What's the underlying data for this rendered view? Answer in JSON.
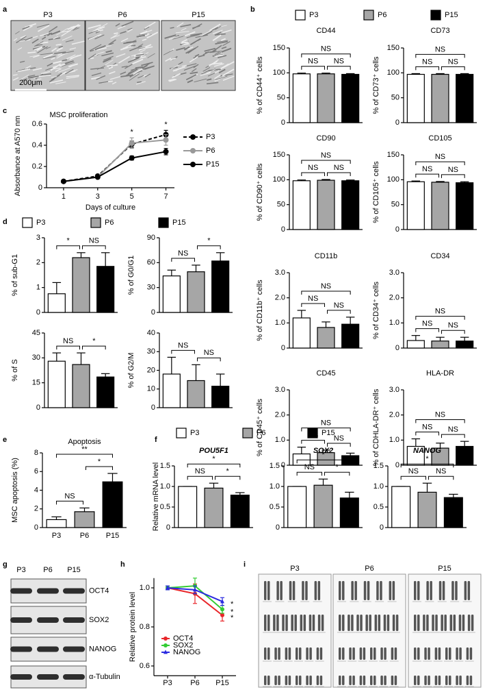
{
  "figure": {
    "panel_labels": [
      "a",
      "b",
      "c",
      "d",
      "e",
      "f",
      "g",
      "h",
      "i"
    ],
    "legend": {
      "labels": [
        "P3",
        "P6",
        "P15"
      ],
      "colors": [
        "#ffffff",
        "#a6a6a6",
        "#000000"
      ]
    }
  },
  "images": {
    "micrographs": {
      "labels": [
        "P3",
        "P6",
        "P15"
      ],
      "scale_bar": "200μm"
    },
    "western_blot": {
      "lanes": [
        "P3",
        "P6",
        "P15"
      ],
      "proteins": [
        "OCT4",
        "SOX2",
        "NANOG",
        "α-Tubulin"
      ]
    },
    "karyotypes": {
      "labels": [
        "P3",
        "P6",
        "P15"
      ]
    }
  },
  "chart_data": [
    {
      "type": "bar",
      "title": "CD44",
      "y_label": "% of CD44⁺ cells",
      "values": [
        98,
        98,
        97
      ],
      "errors": [
        1.5,
        1.5,
        1.5
      ],
      "ylim": [
        0,
        150
      ],
      "yticks": [
        0,
        50,
        100,
        150
      ],
      "comparisons": {
        "first": "NS",
        "second": "NS",
        "overall": "NS"
      }
    },
    {
      "type": "bar",
      "title": "CD73",
      "y_label": "% of CD73⁺ cells",
      "values": [
        97,
        97,
        97
      ],
      "errors": [
        1.5,
        1.5,
        1.5
      ],
      "ylim": [
        0,
        150
      ],
      "yticks": [
        0,
        50,
        100,
        150
      ],
      "comparisons": {
        "first": "NS",
        "second": "NS",
        "overall": "NS"
      }
    },
    {
      "type": "bar",
      "title": "CD90",
      "y_label": "% of CD90⁺ cells",
      "values": [
        98,
        99,
        98
      ],
      "errors": [
        1.5,
        1.5,
        1.5
      ],
      "ylim": [
        0,
        150
      ],
      "yticks": [
        0,
        50,
        100,
        150
      ],
      "comparisons": {
        "first": "NS",
        "second": "NS",
        "overall": "NS"
      }
    },
    {
      "type": "bar",
      "title": "CD105",
      "y_label": "% of CD105⁺ cells",
      "values": [
        96,
        95,
        94
      ],
      "errors": [
        1.5,
        1.5,
        2
      ],
      "ylim": [
        0,
        150
      ],
      "yticks": [
        0,
        50,
        100,
        150
      ],
      "comparisons": {
        "first": "NS",
        "second": "NS",
        "overall": "NS"
      }
    },
    {
      "type": "bar",
      "title": "CD11b",
      "y_label": "% of CD11b⁺ cells",
      "values": [
        1.2,
        0.82,
        0.95
      ],
      "errors": [
        0.3,
        0.22,
        0.28
      ],
      "ylim": [
        0,
        3
      ],
      "yticks": [
        0,
        {
          "value": 1,
          "label": "1.0"
        },
        {
          "value": 2,
          "label": "2.0"
        },
        {
          "value": 3,
          "label": "3.0"
        }
      ],
      "comparisons": {
        "first": "NS",
        "second": "NS",
        "overall": "NS"
      }
    },
    {
      "type": "bar",
      "title": "CD34",
      "y_label": "% of CD34⁺ cells",
      "values": [
        0.3,
        0.28,
        0.28
      ],
      "errors": [
        0.2,
        0.15,
        0.15
      ],
      "ylim": [
        0,
        3
      ],
      "yticks": [
        0,
        {
          "value": 1,
          "label": "1.0"
        },
        {
          "value": 2,
          "label": "2.0"
        },
        {
          "value": 3,
          "label": "3.0"
        }
      ],
      "comparisons": {
        "first": "NS",
        "second": "NS",
        "overall": "NS"
      }
    },
    {
      "type": "bar",
      "title": "CD45",
      "y_label": "% of CD45⁺ cells",
      "values": [
        0.45,
        0.5,
        0.38
      ],
      "errors": [
        0.27,
        0.1,
        0.1
      ],
      "ylim": [
        0,
        3
      ],
      "yticks": [
        0,
        {
          "value": 1,
          "label": "1.0"
        },
        {
          "value": 2,
          "label": "2.0"
        },
        {
          "value": 3,
          "label": "3.0"
        }
      ],
      "comparisons": {
        "first": "NS",
        "second": "NS",
        "overall": "NS"
      }
    },
    {
      "type": "bar",
      "title": "HLA-DR",
      "y_label": "% of CDHLA-DR⁺ cells",
      "values": [
        0.75,
        0.68,
        0.75
      ],
      "errors": [
        0.3,
        0.2,
        0.2
      ],
      "ylim": [
        0,
        3
      ],
      "yticks": [
        0,
        {
          "value": 1,
          "label": "1.0"
        },
        {
          "value": 2,
          "label": "2.0"
        },
        {
          "value": 3,
          "label": "3.0"
        }
      ],
      "comparisons": {
        "first": "NS",
        "second": "NS",
        "overall": "NS"
      }
    },
    {
      "type": "line",
      "title": "MSC proliferation",
      "x_label": "Days of culture",
      "y_label": "Absorbance at A570 nm",
      "x": [
        1,
        3,
        5,
        7
      ],
      "xlim": [
        0,
        7.5
      ],
      "xticks": [
        1,
        3,
        5,
        7
      ],
      "ylim": [
        0,
        0.6
      ],
      "yticks": [
        0,
        0.2,
        0.4,
        0.6
      ],
      "series": [
        {
          "name": "P3",
          "color": "#000000",
          "line_style": "dashed",
          "marker": "circle",
          "values": [
            0.06,
            0.11,
            0.41,
            0.5
          ],
          "errors": [
            0.005,
            0.01,
            0.03,
            0.04
          ]
        },
        {
          "name": "P6",
          "color": "#999999",
          "line_style": "solid",
          "marker": "circle",
          "values": [
            0.06,
            0.1,
            0.42,
            0.45
          ],
          "errors": [
            0.005,
            0.01,
            0.05,
            0.05
          ]
        },
        {
          "name": "P15",
          "color": "#000000",
          "line_style": "solid",
          "marker": "circle",
          "values": [
            0.06,
            0.1,
            0.28,
            0.34
          ],
          "errors": [
            0.005,
            0.01,
            0.02,
            0.03
          ]
        }
      ],
      "annotations": [
        {
          "x": 5,
          "text": "*"
        },
        {
          "x": 7,
          "text": "*"
        }
      ]
    },
    {
      "type": "bar",
      "y_label": "% of sub-G1",
      "values": [
        0.75,
        2.2,
        1.85
      ],
      "errors": [
        0.45,
        0.2,
        0.55
      ],
      "ylim": [
        0,
        3
      ],
      "yticks": [
        0,
        1,
        2,
        3
      ],
      "comparisons": {
        "first": "*",
        "second": "NS"
      }
    },
    {
      "type": "bar",
      "y_label": "% of G0/G1",
      "values": [
        44,
        49,
        62
      ],
      "errors": [
        7,
        8,
        10
      ],
      "ylim": [
        0,
        90
      ],
      "yticks": [
        0,
        30,
        60,
        90
      ],
      "comparisons": {
        "first": "NS",
        "second": "*"
      }
    },
    {
      "type": "bar",
      "y_label": "% of S",
      "values": [
        28,
        26,
        18.5
      ],
      "errors": [
        5,
        7,
        2
      ],
      "ylim": [
        0,
        45
      ],
      "yticks": [
        0,
        15,
        30,
        45
      ],
      "comparisons": {
        "first": "NS",
        "second": "*"
      }
    },
    {
      "type": "bar",
      "y_label": "% of G2/M",
      "values": [
        18,
        14.5,
        11.5
      ],
      "errors": [
        9,
        8.5,
        6.5
      ],
      "ylim": [
        0,
        40
      ],
      "yticks": [
        0,
        10,
        20,
        30,
        40
      ],
      "comparisons": {
        "first": "NS",
        "second": "NS"
      }
    },
    {
      "type": "bar",
      "title": "Apoptosis",
      "y_label": "MSC apoptosis (%)",
      "categories": [
        "P3",
        "P6",
        "P15"
      ],
      "values": [
        0.85,
        1.7,
        4.9
      ],
      "errors": [
        0.3,
        0.4,
        0.9
      ],
      "ylim": [
        0,
        8
      ],
      "yticks": [
        0,
        2,
        4,
        6,
        8
      ],
      "comparisons": {
        "first": "NS",
        "second": "*",
        "overall": "**"
      }
    },
    {
      "type": "bar",
      "title": "POU5F1",
      "y_label": "Relative mRNA level",
      "values": [
        1,
        0.96,
        0.79
      ],
      "errors": [
        0,
        0.12,
        0.06
      ],
      "ylim": [
        0,
        1.5
      ],
      "yticks": [
        0,
        0.5,
        {
          "value": 1,
          "label": "1.0"
        },
        1.5
      ],
      "comparisons": {
        "first": "NS",
        "second": "*",
        "overall": "*"
      }
    },
    {
      "type": "bar",
      "title": "SOX2",
      "values": [
        1,
        1.03,
        0.72
      ],
      "errors": [
        0,
        0.15,
        0.14
      ],
      "ylim": [
        0,
        1.5
      ],
      "yticks": [
        0,
        0.5,
        {
          "value": 1,
          "label": "1.0"
        },
        1.5
      ],
      "comparisons": {
        "first": "NS",
        "second": "*",
        "overall": "*"
      }
    },
    {
      "type": "bar",
      "title": "NANOG",
      "values": [
        1,
        0.86,
        0.73
      ],
      "errors": [
        0,
        0.22,
        0.08
      ],
      "ylim": [
        0,
        1.5
      ],
      "yticks": [
        0,
        0.5,
        {
          "value": 1,
          "label": "1.0"
        },
        1.5
      ],
      "comparisons": {
        "first": "NS",
        "second": "NS",
        "overall": "*"
      }
    },
    {
      "type": "line",
      "y_label": "Relative protein level",
      "categories": [
        "P3",
        "P6",
        "P15"
      ],
      "ylim": [
        0.55,
        1.05
      ],
      "yticks": [
        0.6,
        0.8,
        {
          "value": 1,
          "label": "1.0"
        }
      ],
      "series": [
        {
          "name": "OCT4",
          "color": "#e8262a",
          "line_style": "solid",
          "marker": "circle",
          "values": [
            1,
            0.97,
            0.86
          ],
          "errors": [
            0.01,
            0.05,
            0.03
          ],
          "annotation": "*"
        },
        {
          "name": "SOX2",
          "color": "#33cc33",
          "line_style": "solid",
          "marker": "circle",
          "values": [
            1,
            1.01,
            0.89
          ],
          "errors": [
            0.01,
            0.04,
            0.02
          ],
          "annotation": "*"
        },
        {
          "name": "NANOG",
          "color": "#2a2ae0",
          "line_style": "solid",
          "marker": "triangle",
          "values": [
            1,
            0.99,
            0.93
          ],
          "errors": [
            0.01,
            0.02,
            0.02
          ],
          "annotation": "*"
        }
      ]
    }
  ]
}
